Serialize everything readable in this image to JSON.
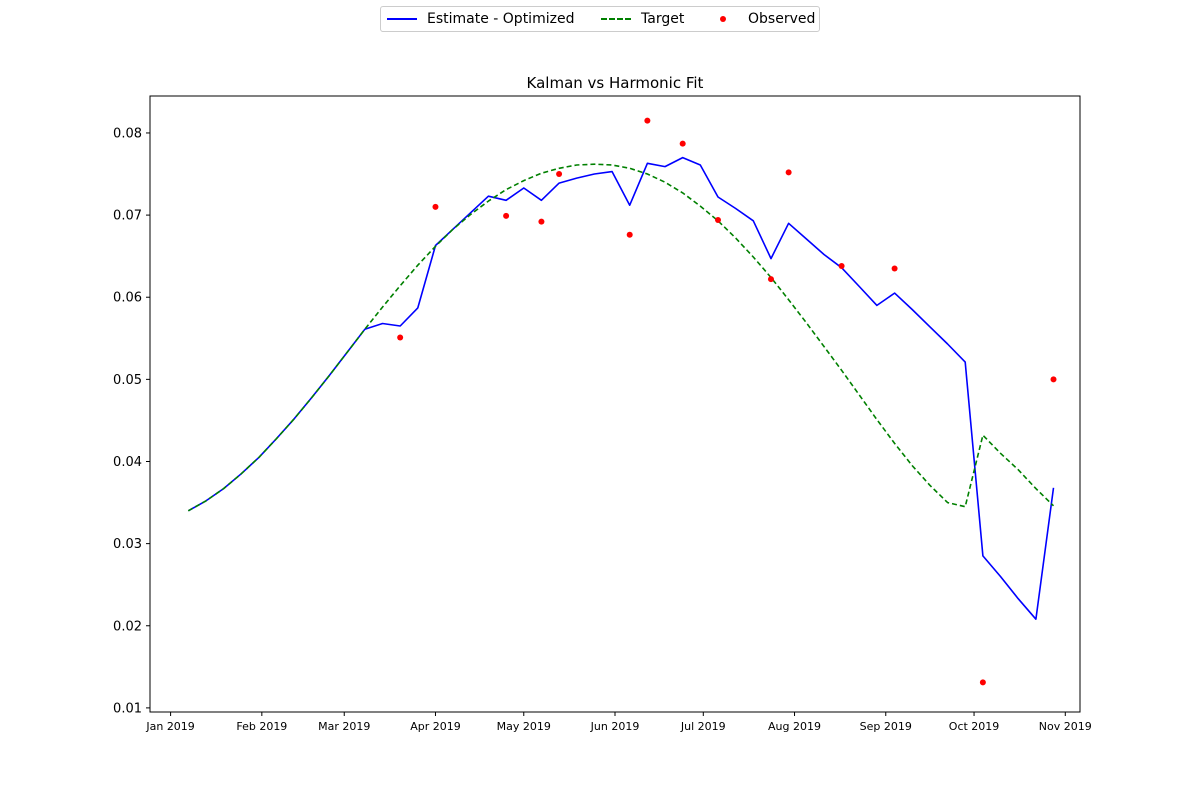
{
  "chart_data": {
    "type": "line",
    "title": "Kalman vs Harmonic Fit",
    "xlabel": "",
    "ylabel": "",
    "x_range": [
      "2018-12-25",
      "2019-11-06"
    ],
    "ylim": [
      0.0095,
      0.0845
    ],
    "grid": false,
    "legend_position": "top-center",
    "x_ticks": [
      {
        "date": "2019-01-01",
        "label": "Jan 2019"
      },
      {
        "date": "2019-02-01",
        "label": "Feb 2019"
      },
      {
        "date": "2019-03-01",
        "label": "Mar 2019"
      },
      {
        "date": "2019-04-01",
        "label": "Apr 2019"
      },
      {
        "date": "2019-05-01",
        "label": "May 2019"
      },
      {
        "date": "2019-06-01",
        "label": "Jun 2019"
      },
      {
        "date": "2019-07-01",
        "label": "Jul 2019"
      },
      {
        "date": "2019-08-01",
        "label": "Aug 2019"
      },
      {
        "date": "2019-09-01",
        "label": "Sep 2019"
      },
      {
        "date": "2019-10-01",
        "label": "Oct 2019"
      },
      {
        "date": "2019-11-01",
        "label": "Nov 2019"
      }
    ],
    "y_ticks": [
      {
        "value": 0.01,
        "label": "0.01"
      },
      {
        "value": 0.02,
        "label": "0.02"
      },
      {
        "value": 0.03,
        "label": "0.03"
      },
      {
        "value": 0.04,
        "label": "0.04"
      },
      {
        "value": 0.05,
        "label": "0.05"
      },
      {
        "value": 0.06,
        "label": "0.06"
      },
      {
        "value": 0.07,
        "label": "0.07"
      },
      {
        "value": 0.08,
        "label": "0.08"
      }
    ],
    "series": [
      {
        "name": "Estimate - Optimized",
        "style": "solid",
        "color": "#0000ff",
        "points": [
          [
            "2019-01-07",
            0.034
          ],
          [
            "2019-01-13",
            0.0352
          ],
          [
            "2019-01-19",
            0.0367
          ],
          [
            "2019-01-25",
            0.0385
          ],
          [
            "2019-01-31",
            0.0405
          ],
          [
            "2019-02-06",
            0.0428
          ],
          [
            "2019-02-12",
            0.0452
          ],
          [
            "2019-02-18",
            0.0478
          ],
          [
            "2019-02-24",
            0.0505
          ],
          [
            "2019-03-02",
            0.0533
          ],
          [
            "2019-03-08",
            0.0561
          ],
          [
            "2019-03-14",
            0.0568
          ],
          [
            "2019-03-20",
            0.0565
          ],
          [
            "2019-03-26",
            0.0587
          ],
          [
            "2019-04-01",
            0.0663
          ],
          [
            "2019-04-07",
            0.0683
          ],
          [
            "2019-04-13",
            0.0703
          ],
          [
            "2019-04-19",
            0.0723
          ],
          [
            "2019-04-25",
            0.0718
          ],
          [
            "2019-05-01",
            0.0733
          ],
          [
            "2019-05-07",
            0.0718
          ],
          [
            "2019-05-13",
            0.0739
          ],
          [
            "2019-05-19",
            0.0745
          ],
          [
            "2019-05-25",
            0.075
          ],
          [
            "2019-05-31",
            0.0753
          ],
          [
            "2019-06-06",
            0.0712
          ],
          [
            "2019-06-12",
            0.0763
          ],
          [
            "2019-06-18",
            0.0759
          ],
          [
            "2019-06-24",
            0.077
          ],
          [
            "2019-06-30",
            0.0761
          ],
          [
            "2019-07-06",
            0.0722
          ],
          [
            "2019-07-12",
            0.0708
          ],
          [
            "2019-07-18",
            0.0693
          ],
          [
            "2019-07-24",
            0.0647
          ],
          [
            "2019-07-30",
            0.069
          ],
          [
            "2019-08-05",
            0.0671
          ],
          [
            "2019-08-11",
            0.0652
          ],
          [
            "2019-08-17",
            0.0636
          ],
          [
            "2019-08-23",
            0.0613
          ],
          [
            "2019-08-29",
            0.059
          ],
          [
            "2019-09-04",
            0.0605
          ],
          [
            "2019-09-10",
            0.0585
          ],
          [
            "2019-09-16",
            0.0564
          ],
          [
            "2019-09-22",
            0.0543
          ],
          [
            "2019-09-28",
            0.0521
          ],
          [
            "2019-10-04",
            0.0285
          ],
          [
            "2019-10-10",
            0.026
          ],
          [
            "2019-10-16",
            0.0233
          ],
          [
            "2019-10-22",
            0.0208
          ],
          [
            "2019-10-28",
            0.0368
          ]
        ]
      },
      {
        "name": "Target",
        "style": "dashed",
        "color": "#008000",
        "points": [
          [
            "2019-01-07",
            0.034
          ],
          [
            "2019-01-13",
            0.0352
          ],
          [
            "2019-01-19",
            0.0367
          ],
          [
            "2019-01-25",
            0.0385
          ],
          [
            "2019-01-31",
            0.0405
          ],
          [
            "2019-02-06",
            0.0428
          ],
          [
            "2019-02-12",
            0.0452
          ],
          [
            "2019-02-18",
            0.0478
          ],
          [
            "2019-02-24",
            0.0505
          ],
          [
            "2019-03-02",
            0.0533
          ],
          [
            "2019-03-08",
            0.0561
          ],
          [
            "2019-03-14",
            0.0588
          ],
          [
            "2019-03-20",
            0.0614
          ],
          [
            "2019-03-26",
            0.0639
          ],
          [
            "2019-04-01",
            0.0662
          ],
          [
            "2019-04-07",
            0.0683
          ],
          [
            "2019-04-13",
            0.0701
          ],
          [
            "2019-04-19",
            0.0717
          ],
          [
            "2019-04-25",
            0.0731
          ],
          [
            "2019-05-01",
            0.0742
          ],
          [
            "2019-05-07",
            0.0751
          ],
          [
            "2019-05-13",
            0.0757
          ],
          [
            "2019-05-19",
            0.0761
          ],
          [
            "2019-05-25",
            0.0762
          ],
          [
            "2019-05-31",
            0.0761
          ],
          [
            "2019-06-06",
            0.0757
          ],
          [
            "2019-06-12",
            0.075
          ],
          [
            "2019-06-18",
            0.074
          ],
          [
            "2019-06-24",
            0.0727
          ],
          [
            "2019-06-30",
            0.0711
          ],
          [
            "2019-07-06",
            0.0693
          ],
          [
            "2019-07-12",
            0.0672
          ],
          [
            "2019-07-18",
            0.0649
          ],
          [
            "2019-07-24",
            0.0624
          ],
          [
            "2019-07-30",
            0.0597
          ],
          [
            "2019-08-05",
            0.0569
          ],
          [
            "2019-08-11",
            0.054
          ],
          [
            "2019-08-17",
            0.0511
          ],
          [
            "2019-08-23",
            0.0481
          ],
          [
            "2019-08-29",
            0.0451
          ],
          [
            "2019-09-04",
            0.0422
          ],
          [
            "2019-09-10",
            0.0395
          ],
          [
            "2019-09-16",
            0.0371
          ],
          [
            "2019-09-22",
            0.035
          ],
          [
            "2019-09-28",
            0.0345
          ],
          [
            "2019-10-04",
            0.0432
          ],
          [
            "2019-10-10",
            0.041
          ],
          [
            "2019-10-16",
            0.039
          ],
          [
            "2019-10-22",
            0.0367
          ],
          [
            "2019-10-28",
            0.0346
          ]
        ]
      },
      {
        "name": "Observed",
        "style": "marker",
        "color": "#ff0000",
        "points": [
          [
            "2019-03-20",
            0.0551
          ],
          [
            "2019-04-01",
            0.071
          ],
          [
            "2019-04-25",
            0.0699
          ],
          [
            "2019-05-07",
            0.0692
          ],
          [
            "2019-05-13",
            0.075
          ],
          [
            "2019-06-06",
            0.0676
          ],
          [
            "2019-06-12",
            0.0815
          ],
          [
            "2019-06-24",
            0.0787
          ],
          [
            "2019-07-06",
            0.0694
          ],
          [
            "2019-07-24",
            0.0622
          ],
          [
            "2019-07-30",
            0.0752
          ],
          [
            "2019-08-17",
            0.0638
          ],
          [
            "2019-09-04",
            0.0635
          ],
          [
            "2019-10-04",
            0.0131
          ],
          [
            "2019-10-28",
            0.05
          ]
        ]
      }
    ]
  },
  "legend": {
    "items": [
      {
        "label": "Estimate - Optimized"
      },
      {
        "label": "Target"
      },
      {
        "label": "Observed"
      }
    ]
  }
}
